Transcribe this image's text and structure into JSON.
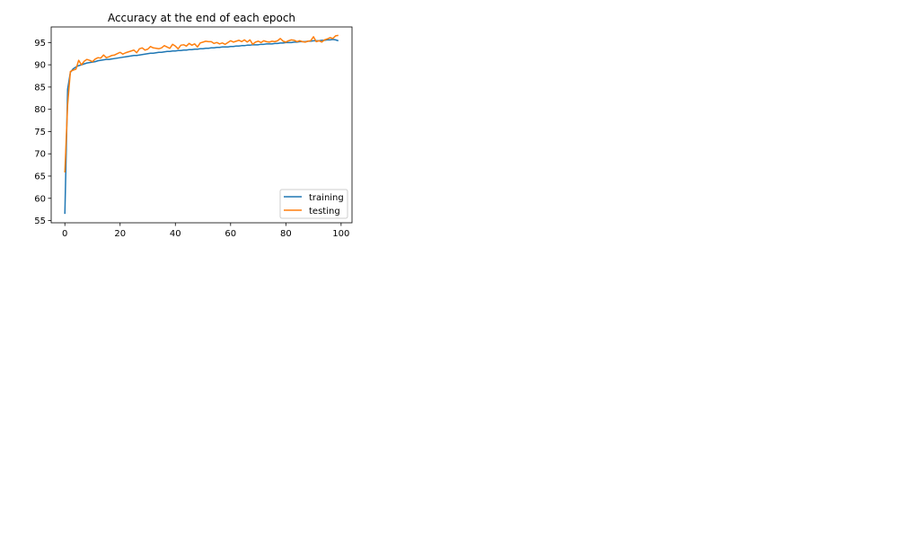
{
  "chart_data": {
    "type": "line",
    "title": "Accuracy at the end of each epoch",
    "xlabel": "",
    "ylabel": "",
    "xlim": [
      -4.95,
      103.95
    ],
    "ylim": [
      54.5,
      98.5
    ],
    "xticks": [
      0,
      20,
      40,
      60,
      80,
      100
    ],
    "yticks": [
      55,
      60,
      65,
      70,
      75,
      80,
      85,
      90,
      95
    ],
    "grid": false,
    "legend_position": "lower right",
    "series": [
      {
        "name": "training",
        "color": "#1f77b4",
        "x": [
          0,
          1,
          2,
          3,
          4,
          5,
          6,
          7,
          8,
          9,
          10,
          11,
          12,
          13,
          14,
          15,
          16,
          17,
          18,
          19,
          20,
          21,
          22,
          23,
          24,
          25,
          26,
          27,
          28,
          29,
          30,
          31,
          32,
          33,
          34,
          35,
          36,
          37,
          38,
          39,
          40,
          41,
          42,
          43,
          44,
          45,
          46,
          47,
          48,
          49,
          50,
          51,
          52,
          53,
          54,
          55,
          56,
          57,
          58,
          59,
          60,
          61,
          62,
          63,
          64,
          65,
          66,
          67,
          68,
          69,
          70,
          71,
          72,
          73,
          74,
          75,
          76,
          77,
          78,
          79,
          80,
          81,
          82,
          83,
          84,
          85,
          86,
          87,
          88,
          89,
          90,
          91,
          92,
          93,
          94,
          95,
          96,
          97,
          98,
          99
        ],
        "y": [
          56.5,
          84.5,
          88.3,
          89.1,
          89.5,
          89.8,
          90.0,
          90.2,
          90.4,
          90.5,
          90.6,
          90.7,
          90.9,
          91.0,
          91.1,
          91.2,
          91.2,
          91.3,
          91.4,
          91.5,
          91.6,
          91.7,
          91.8,
          91.9,
          92.0,
          92.1,
          92.1,
          92.2,
          92.3,
          92.4,
          92.5,
          92.6,
          92.6,
          92.7,
          92.8,
          92.8,
          92.9,
          93.0,
          93.0,
          93.1,
          93.1,
          93.2,
          93.2,
          93.3,
          93.3,
          93.4,
          93.4,
          93.5,
          93.5,
          93.6,
          93.6,
          93.7,
          93.7,
          93.8,
          93.8,
          93.9,
          93.9,
          94.0,
          94.0,
          94.0,
          94.1,
          94.1,
          94.2,
          94.2,
          94.3,
          94.3,
          94.4,
          94.4,
          94.5,
          94.5,
          94.5,
          94.6,
          94.6,
          94.7,
          94.7,
          94.7,
          94.8,
          94.8,
          94.9,
          94.9,
          95.0,
          95.0,
          95.0,
          95.1,
          95.1,
          95.2,
          95.2,
          95.2,
          95.3,
          95.3,
          95.4,
          95.4,
          95.4,
          95.5,
          95.5,
          95.6,
          95.6,
          95.7,
          95.6,
          95.4
        ]
      },
      {
        "name": "testing",
        "color": "#ff7f0e",
        "x": [
          0,
          1,
          2,
          3,
          4,
          5,
          6,
          7,
          8,
          9,
          10,
          11,
          12,
          13,
          14,
          15,
          16,
          17,
          18,
          19,
          20,
          21,
          22,
          23,
          24,
          25,
          26,
          27,
          28,
          29,
          30,
          31,
          32,
          33,
          34,
          35,
          36,
          37,
          38,
          39,
          40,
          41,
          42,
          43,
          44,
          45,
          46,
          47,
          48,
          49,
          50,
          51,
          52,
          53,
          54,
          55,
          56,
          57,
          58,
          59,
          60,
          61,
          62,
          63,
          64,
          65,
          66,
          67,
          68,
          69,
          70,
          71,
          72,
          73,
          74,
          75,
          76,
          77,
          78,
          79,
          80,
          81,
          82,
          83,
          84,
          85,
          86,
          87,
          88,
          89,
          90,
          91,
          92,
          93,
          94,
          95,
          96,
          97,
          98,
          99
        ],
        "y": [
          65.8,
          81.0,
          88.5,
          88.8,
          89.0,
          91.0,
          90.0,
          90.8,
          91.2,
          91.0,
          90.7,
          91.3,
          91.6,
          91.5,
          92.2,
          91.6,
          91.8,
          92.1,
          92.2,
          92.5,
          92.8,
          92.4,
          92.7,
          92.9,
          93.1,
          93.3,
          92.7,
          93.6,
          93.8,
          93.3,
          93.5,
          94.1,
          93.8,
          93.7,
          93.6,
          93.8,
          94.3,
          94.0,
          93.7,
          94.6,
          94.2,
          93.6,
          94.4,
          94.5,
          94.2,
          94.8,
          94.4,
          94.7,
          94.0,
          94.9,
          95.1,
          95.3,
          95.2,
          95.2,
          94.8,
          95.0,
          94.7,
          94.9,
          94.6,
          95.0,
          95.4,
          95.1,
          95.3,
          95.5,
          95.2,
          95.6,
          95.1,
          95.6,
          94.6,
          95.1,
          95.3,
          95.0,
          95.4,
          95.2,
          95.1,
          95.3,
          95.2,
          95.4,
          95.9,
          95.3,
          95.1,
          95.4,
          95.6,
          95.5,
          95.2,
          95.4,
          95.2,
          95.1,
          95.3,
          95.4,
          96.3,
          95.2,
          95.4,
          95.1,
          95.6,
          95.8,
          96.1,
          95.9,
          96.5,
          96.6
        ]
      }
    ]
  }
}
